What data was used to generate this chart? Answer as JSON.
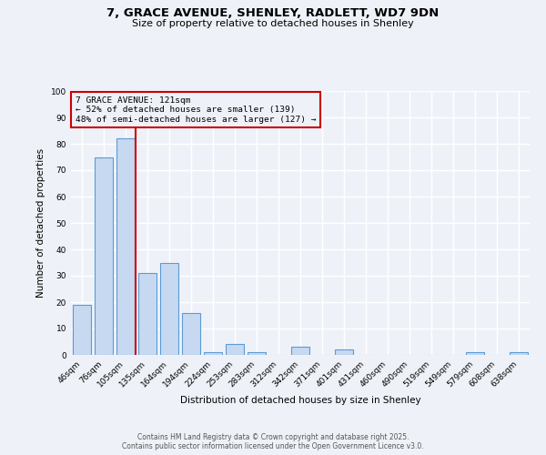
{
  "title": "7, GRACE AVENUE, SHENLEY, RADLETT, WD7 9DN",
  "subtitle": "Size of property relative to detached houses in Shenley",
  "xlabel": "Distribution of detached houses by size in Shenley",
  "ylabel": "Number of detached properties",
  "bar_labels": [
    "46sqm",
    "76sqm",
    "105sqm",
    "135sqm",
    "164sqm",
    "194sqm",
    "224sqm",
    "253sqm",
    "283sqm",
    "312sqm",
    "342sqm",
    "371sqm",
    "401sqm",
    "431sqm",
    "460sqm",
    "490sqm",
    "519sqm",
    "549sqm",
    "579sqm",
    "608sqm",
    "638sqm"
  ],
  "bar_values": [
    19,
    75,
    82,
    31,
    35,
    16,
    1,
    4,
    1,
    0,
    3,
    0,
    2,
    0,
    0,
    0,
    0,
    0,
    1,
    0,
    1
  ],
  "bar_color": "#c6d9f1",
  "bar_edge_color": "#5b9bd5",
  "vline_color": "#cc0000",
  "annotation_title": "7 GRACE AVENUE: 121sqm",
  "annotation_line1": "← 52% of detached houses are smaller (139)",
  "annotation_line2": "48% of semi-detached houses are larger (127) →",
  "annotation_box_color": "#cc0000",
  "ylim": [
    0,
    100
  ],
  "yticks": [
    0,
    10,
    20,
    30,
    40,
    50,
    60,
    70,
    80,
    90,
    100
  ],
  "background_color": "#eef2f8",
  "footer1": "Contains HM Land Registry data © Crown copyright and database right 2025.",
  "footer2": "Contains public sector information licensed under the Open Government Licence v3.0."
}
